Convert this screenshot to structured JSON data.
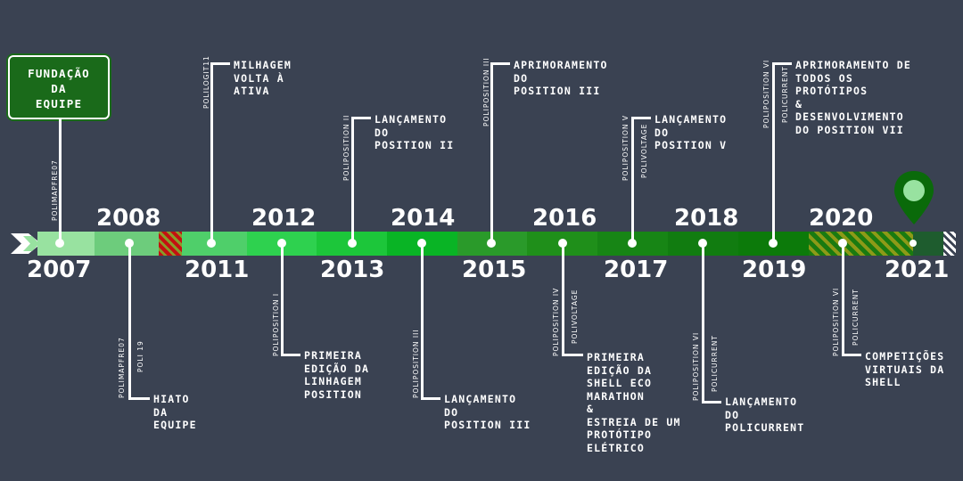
{
  "start": {
    "title": "FUNDAÇÃO\nDA\nEQUIPE"
  },
  "colors": {
    "background": "#3a4252",
    "track": [
      "#98e2a0",
      "#6dcc7c",
      "#4fcf6a",
      "#2ed14f",
      "#1cc63a",
      "#09b425",
      "#2a9a2a",
      "#1f8f1a",
      "#178515",
      "#117c10",
      "#0c7a0a",
      "#1e5c2e"
    ],
    "pin": "#0a6a0a"
  },
  "years_above": [
    "2008",
    "2012",
    "2014",
    "2016",
    "2018",
    "2020"
  ],
  "years_below": [
    "2007",
    "2011",
    "2013",
    "2015",
    "2017",
    "2019",
    "2021"
  ],
  "events": {
    "e2007": {
      "vt1": "POLIMAPFRE07"
    },
    "e2008": {
      "label": "HIATO\nDA\nEQUIPE",
      "vt1": "POLIMAPFRE07",
      "vt2": "POLI 19"
    },
    "e2011": {
      "label": "MILHAGEM\nVOLTA À\nATIVA",
      "vt1": "POLILOGIT11"
    },
    "e2012": {
      "label": "PRIMEIRA\nEDIÇÃO DA\nLINHAGEM\nPOSITION",
      "vt1": "POLIPOSITION I"
    },
    "e2013": {
      "label": "LANÇAMENTO\nDO\nPOSITION II",
      "vt1": "POLIPOSITION II"
    },
    "e2014": {
      "label": "LANÇAMENTO\nDO\nPOSITION III",
      "vt1": "POLIPOSITION III"
    },
    "e2015": {
      "label": "APRIMORAMENTO\nDO\nPOSITION III",
      "vt1": "POLIPOSITION III"
    },
    "e2016": {
      "label": "PRIMEIRA\nEDIÇÃO DA\nSHELL ECO\nMARATHON\n&\nESTREIA DE UM\nPROTÓTIPO\nELÉTRICO",
      "vt1": "POLIPOSITION IV",
      "vt2": "POLIVOLTAGE"
    },
    "e2017": {
      "label": "LANÇAMENTO\nDO\nPOSITION V",
      "vt1": "POLIPOSITION V",
      "vt2": "POLIVOLTAGE"
    },
    "e2018": {
      "label": "LANÇAMENTO\nDO\nPOLICURRENT",
      "vt1": "POLIPOSITION VI",
      "vt2": "POLICURRENT"
    },
    "e2019": {
      "label": "APRIMORAMENTO DE\nTODOS OS\nPROTÓTIPOS\n&\nDESENVOLVIMENTO\nDO POSITION VII",
      "vt1": "POLIPOSITION VI",
      "vt2": "POLICURRENT"
    },
    "e2020": {
      "label": "COMPETIÇÕES\nVIRTUAIS DA\nSHELL",
      "vt1": "POLIPOSITION VI",
      "vt2": "POLICURRENT"
    }
  }
}
